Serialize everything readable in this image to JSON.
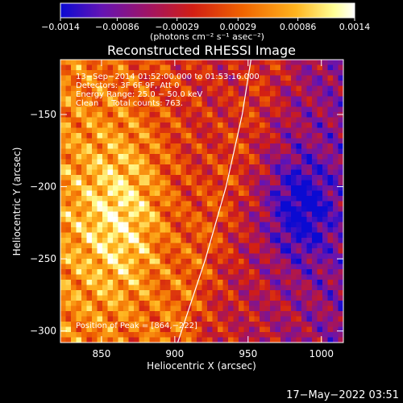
{
  "chart_data": {
    "type": "heatmap",
    "title": "Reconstructed RHESSI Image",
    "xlabel": "Heliocentric X (arcsec)",
    "ylabel": "Heliocentric Y (arcsec)",
    "xlim": [
      822,
      1015
    ],
    "ylim": [
      -308,
      -112
    ],
    "x_ticks": [
      850,
      900,
      950,
      1000
    ],
    "x_tick_labels": [
      "850",
      "900",
      "950",
      "1000"
    ],
    "y_ticks": [
      -150,
      -200,
      -250,
      -300
    ],
    "y_tick_labels": [
      "−150",
      "−200",
      "−250",
      "−300"
    ],
    "colorbar": {
      "range": [
        -0.0014,
        0.0014
      ],
      "ticks": [
        -0.0014,
        -0.00086,
        -0.00029,
        0.00029,
        0.00086,
        0.0014
      ],
      "tick_labels": [
        "−0.0014",
        "−0.00086",
        "−0.00029",
        "0.00029",
        "0.00086",
        "0.0014"
      ],
      "label": "(photons cm⁻² s⁻¹ asec⁻²)",
      "colors": [
        "#0a0ad2",
        "#6414b4",
        "#a01464",
        "#d21e14",
        "#f06400",
        "#ffb41e",
        "#ffff96",
        "#ffffff"
      ]
    },
    "annotations": [
      "13−Sep−2014 01:52:00.000 to 01:53:16.000",
      "Detectors: 3F 6F 9F, Att 0",
      "Energy Range: 25.0 − 50.0 keV",
      "Clean     Total counts: 763.",
      "Position of Peak = [864,−222]"
    ],
    "peak": {
      "x": 864,
      "y": -222
    },
    "limb_curve": [
      [
        902,
        -308
      ],
      [
        921,
        -250
      ],
      [
        935,
        -200
      ],
      [
        946,
        -150
      ],
      [
        952,
        -112
      ]
    ],
    "limb_color": "#ffffff",
    "grid": false,
    "timestamp": "17−May−2022 03:51"
  }
}
